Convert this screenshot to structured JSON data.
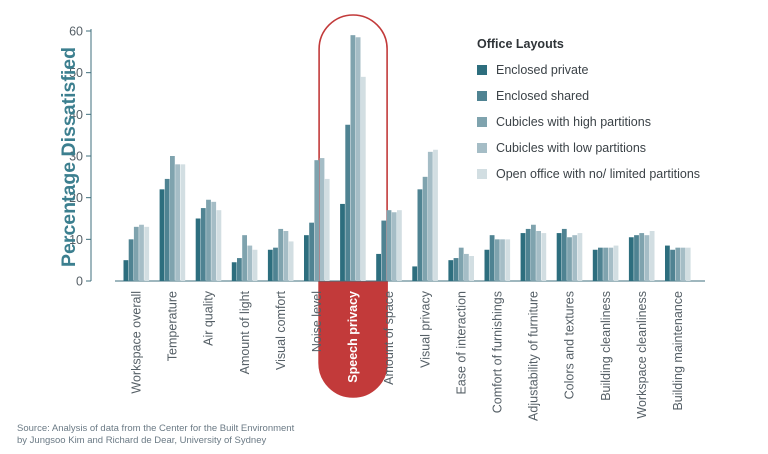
{
  "chart_data": {
    "type": "bar",
    "ylabel": "Percentage Dissatisfied",
    "ylim": [
      0,
      60
    ],
    "yticks": [
      "0",
      "10",
      "20",
      "30",
      "40",
      "50",
      "60"
    ],
    "grid": false,
    "legend_placement": "top-right",
    "highlight_category": "Speech privacy",
    "categories": [
      "Workspace overall",
      "Temperature",
      "Air quality",
      "Amount of light",
      "Visual comfort",
      "Noise level",
      "Speech privacy",
      "Amount of space",
      "Visual privacy",
      "Ease of interaction",
      "Comfort of furnishings",
      "Adjustability of furniture",
      "Colors and textures",
      "Building cleanliness",
      "Workspace cleanliness",
      "Building maintenance"
    ],
    "series": [
      {
        "name": "Enclosed private",
        "color": "#2d6e7e",
        "values": [
          5,
          22,
          15,
          4.5,
          7.5,
          11,
          18.5,
          6.5,
          3.5,
          5,
          7.5,
          11.5,
          11.5,
          7.5,
          10.5,
          8.5
        ]
      },
      {
        "name": "Enclosed shared",
        "color": "#4f8392",
        "values": [
          10,
          24.5,
          17.5,
          5.5,
          8,
          14,
          37.5,
          14.5,
          22,
          5.5,
          11,
          12.5,
          12.5,
          8,
          11,
          7.5
        ]
      },
      {
        "name": "Cubicles with high partitions",
        "color": "#7fa3ae",
        "values": [
          13,
          30,
          19.5,
          11,
          12.5,
          29,
          59,
          17,
          25,
          8,
          10,
          13.5,
          10.5,
          8,
          11.5,
          8
        ]
      },
      {
        "name": "Cubicles with low partitions",
        "color": "#a5bdc6",
        "values": [
          13.5,
          28,
          19,
          8.5,
          12,
          29.5,
          58.5,
          16.5,
          31,
          6.5,
          10,
          12,
          11,
          8,
          11,
          8
        ]
      },
      {
        "name": "Open office with no/ limited partitions",
        "color": "#d2dee2",
        "values": [
          13,
          28,
          17,
          7.5,
          9.5,
          24.5,
          49,
          17,
          31.5,
          6,
          10,
          11.5,
          11.5,
          8.5,
          12,
          8
        ]
      }
    ],
    "legend_title": "Office Layouts"
  },
  "source_note": {
    "line1": "Source: Analysis of data from the Center for the Built Environment",
    "line2": "by Jungsoo Kim and Richard de Dear, University of Sydney"
  }
}
